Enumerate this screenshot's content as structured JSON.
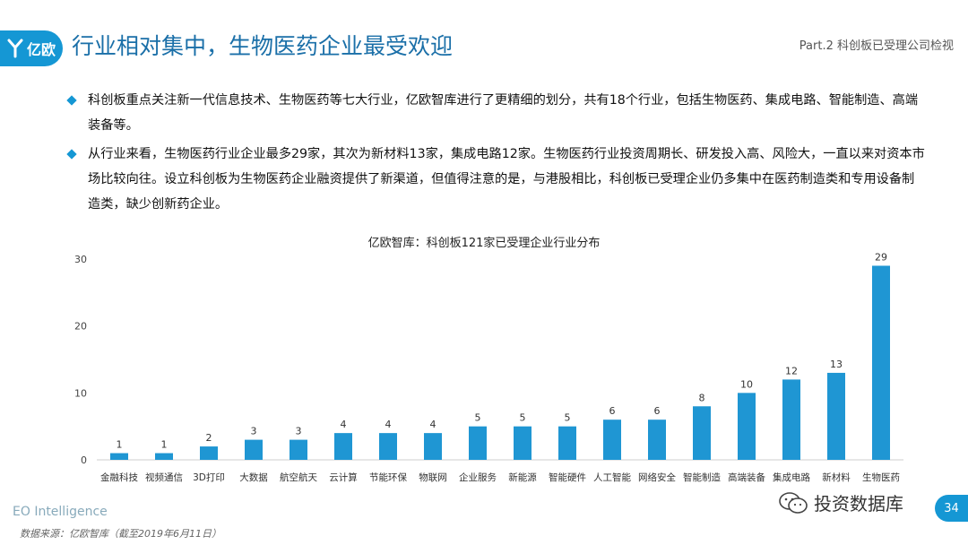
{
  "header": {
    "logo_text": "亿欧",
    "title": "行业相对集中，生物医药企业最受欢迎",
    "part_label": "Part.2 科创板已受理公司检视"
  },
  "bullets": [
    "科创板重点关注新一代信息技术、生物医药等七大行业，亿欧智库进行了更精细的划分，共有18个行业，包括生物医药、集成电路、智能制造、高端装备等。",
    "从行业来看，生物医药行业企业最多29家，其次为新材料13家，集成电路12家。生物医药行业投资周期长、研发投入高、风险大，一直以来对资本市场比较向往。设立科创板为生物医药企业融资提供了新渠道，但值得注意的是，与港股相比，科创板已受理企业仍多集中在医药制造类和专用设备制造类，缺少创新药企业。"
  ],
  "chart_data": {
    "type": "bar",
    "title": "亿欧智库：科创板121家已受理企业行业分布",
    "categories": [
      "金融科技",
      "视频通信",
      "3D打印",
      "大数据",
      "航空航天",
      "云计算",
      "节能环保",
      "物联网",
      "企业服务",
      "新能源",
      "智能硬件",
      "人工智能",
      "网络安全",
      "智能制造",
      "高端装备",
      "集成电路",
      "新材料",
      "生物医药"
    ],
    "values": [
      1,
      1,
      2,
      3,
      3,
      4,
      4,
      4,
      5,
      5,
      5,
      6,
      6,
      8,
      10,
      12,
      13,
      29
    ],
    "yticks": [
      0,
      10,
      20,
      30
    ],
    "ylim": [
      0,
      30
    ],
    "grid": false,
    "bar_color": "#1f96d3"
  },
  "footer": {
    "brand": "EO Intelligence",
    "source": "数据来源：亿欧智库（截至2019年6月11日）",
    "watermark": "投资数据库",
    "page_number": "34"
  }
}
